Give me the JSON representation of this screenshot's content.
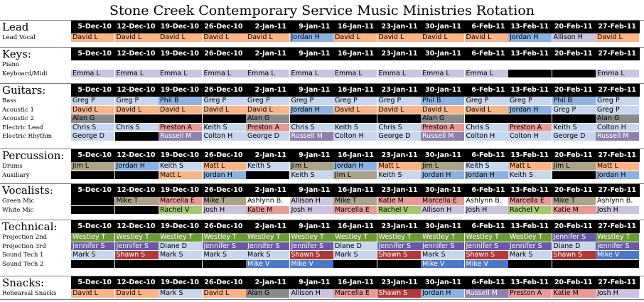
{
  "title": "Stone Creek Contemporary Service Music Ministries Rotation",
  "dates": [
    "5-Dec-10",
    "12-Dec-10",
    "19-Dec-10",
    "26-Dec-10",
    "2-Jan-11",
    "9-Jan-11",
    "16-Jan-11",
    "23-Jan-11",
    "30-Jan-11",
    "6-Feb-11",
    "13-Feb-11",
    "20-Feb-11",
    "27-Feb-11"
  ],
  "colors": {
    "peach": "#f9b58a",
    "blue": "#8eb2df",
    "lav": "#ccc4dd",
    "gray": "#8a8a8a",
    "lblue": "#c8d7ee",
    "rose": "#e69a9a",
    "taupe": "#aaa38a",
    "green": "#a4c870",
    "dgreen": "#6f9a3a",
    "purple": "#6a5aa6",
    "dblue": "#4f77c8",
    "dred": "#b03a3a",
    "mauve": "#8e80ad",
    "white": "#ffffff",
    "black": "#000000"
  },
  "sections": [
    {
      "name": "Lead",
      "showDates": true,
      "rows": [
        {
          "label": "Lead Vocal",
          "cells": [
            [
              "David L",
              "peach"
            ],
            [
              "David L",
              "peach"
            ],
            [
              "David L",
              "peach"
            ],
            [
              "David L",
              "peach"
            ],
            [
              "David L",
              "peach"
            ],
            [
              "Jordan H",
              "blue"
            ],
            [
              "David L",
              "peach"
            ],
            [
              "David L",
              "peach"
            ],
            [
              "David L",
              "peach"
            ],
            [
              "David L",
              "peach"
            ],
            [
              "Jordan H",
              "blue"
            ],
            [
              "Allison H",
              "lav"
            ],
            [
              "David L",
              "peach"
            ]
          ]
        }
      ]
    },
    {
      "name": "Keys:",
      "showDates": true,
      "rows": [
        {
          "label": "Piano",
          "cells": [
            [
              "",
              "white"
            ],
            [
              "",
              "white"
            ],
            [
              "",
              "white"
            ],
            [
              "",
              "white"
            ],
            [
              "",
              "white"
            ],
            [
              "",
              "white"
            ],
            [
              "",
              "white"
            ],
            [
              "",
              "white"
            ],
            [
              "",
              "white"
            ],
            [
              "",
              "white"
            ],
            [
              "",
              "white"
            ],
            [
              "",
              "white"
            ],
            [
              "",
              "white"
            ]
          ]
        },
        {
          "label": "Keyboard/Midi",
          "cells": [
            [
              "Emma L",
              "lav"
            ],
            [
              "Emma L",
              "lav"
            ],
            [
              "Emma L",
              "lav"
            ],
            [
              "Emma L",
              "lav"
            ],
            [
              "Emma L",
              "lav"
            ],
            [
              "Emma L",
              "lav"
            ],
            [
              "Emma L",
              "lav"
            ],
            [
              "Emma L",
              "lav"
            ],
            [
              "Emma L",
              "lav"
            ],
            [
              "Emma L",
              "lav"
            ],
            [
              "",
              "black"
            ],
            [
              "",
              "black"
            ],
            [
              "Emma L",
              "lav"
            ]
          ]
        }
      ]
    },
    {
      "name": "Guitars:",
      "showDates": true,
      "rows": [
        {
          "label": "Bass",
          "cells": [
            [
              "Greg P",
              "lblue"
            ],
            [
              "Greg P",
              "lblue"
            ],
            [
              "Phil B",
              "blue"
            ],
            [
              "Greg P",
              "lblue"
            ],
            [
              "Greg P",
              "lblue"
            ],
            [
              "Greg P",
              "lblue"
            ],
            [
              "Greg P",
              "lblue"
            ],
            [
              "Greg P",
              "lblue"
            ],
            [
              "Phil B",
              "blue"
            ],
            [
              "Greg P",
              "lblue"
            ],
            [
              "Greg P",
              "lblue"
            ],
            [
              "Phil B",
              "blue"
            ],
            [
              "Greg P",
              "lblue"
            ]
          ]
        },
        {
          "label": "Acoustic 1",
          "cells": [
            [
              "David L",
              "peach"
            ],
            [
              "David L",
              "peach"
            ],
            [
              "David L",
              "peach"
            ],
            [
              "David L",
              "peach"
            ],
            [
              "David L",
              "peach"
            ],
            [
              "Jordan H",
              "blue"
            ],
            [
              "David L",
              "peach"
            ],
            [
              "David L",
              "peach"
            ],
            [
              "David L",
              "peach"
            ],
            [
              "David L",
              "peach"
            ],
            [
              "Jordan H",
              "blue"
            ],
            [
              "Greg P",
              "lblue"
            ],
            [
              "Greg P",
              "lblue"
            ]
          ]
        },
        {
          "label": "Acoustic 2",
          "cells": [
            [
              "Alan G",
              "gray"
            ],
            [
              "",
              "black"
            ],
            [
              "",
              "black"
            ],
            [
              "",
              "black"
            ],
            [
              "Alan G",
              "gray"
            ],
            [
              "",
              "black"
            ],
            [
              "",
              "black"
            ],
            [
              "",
              "black"
            ],
            [
              "Alan G",
              "gray"
            ],
            [
              "",
              "black"
            ],
            [
              "",
              "black"
            ],
            [
              "",
              "black"
            ],
            [
              "Alan G",
              "gray"
            ]
          ]
        },
        {
          "label": "Electric Lead",
          "cells": [
            [
              "Chris S",
              "lblue"
            ],
            [
              "Chris S",
              "lblue"
            ],
            [
              "Preston A",
              "rose"
            ],
            [
              "Keith S",
              "lblue"
            ],
            [
              "Preston A",
              "rose"
            ],
            [
              "Chris S",
              "lblue"
            ],
            [
              "Keith S",
              "lblue"
            ],
            [
              "Chris S",
              "lblue"
            ],
            [
              "Preston A",
              "rose"
            ],
            [
              "Chris S",
              "lblue"
            ],
            [
              "Preston A",
              "rose"
            ],
            [
              "Keith S",
              "lblue"
            ],
            [
              "Colton H",
              "lblue"
            ]
          ]
        },
        {
          "label": "Electric Rhythm",
          "cells": [
            [
              "George D",
              "lblue"
            ],
            [
              "",
              "black"
            ],
            [
              "Russell M",
              "mauve"
            ],
            [
              "Colton H",
              "lblue"
            ],
            [
              "George D",
              "lblue"
            ],
            [
              "Russell M",
              "mauve"
            ],
            [
              "Colton H",
              "lblue"
            ],
            [
              "George D",
              "lblue"
            ],
            [
              "Russell M",
              "mauve"
            ],
            [
              "Colton H",
              "lblue"
            ],
            [
              "Colton H",
              "lblue"
            ],
            [
              "George D",
              "lblue"
            ],
            [
              "Russell M",
              "mauve"
            ]
          ]
        }
      ]
    },
    {
      "name": "Percussion:",
      "showDates": true,
      "rows": [
        {
          "label": "Drums",
          "cells": [
            [
              "Jim L",
              "taupe"
            ],
            [
              "Jordan H",
              "blue"
            ],
            [
              "Keith S",
              "lblue"
            ],
            [
              "Matt L",
              "peach"
            ],
            [
              "Keith S",
              "lblue"
            ],
            [
              "Jim L",
              "taupe"
            ],
            [
              "Jordan H",
              "blue"
            ],
            [
              "Matt L",
              "peach"
            ],
            [
              "Jim L",
              "taupe"
            ],
            [
              "Keith S",
              "lblue"
            ],
            [
              "Matt L",
              "peach"
            ],
            [
              "Jim L",
              "taupe"
            ],
            [
              "Matt L",
              "peach"
            ]
          ]
        },
        {
          "label": "Auxiliary",
          "cells": [
            [
              "",
              "black"
            ],
            [
              "",
              "black"
            ],
            [
              "Matt L",
              "peach"
            ],
            [
              "Jordan H",
              "blue"
            ],
            [
              "",
              "black"
            ],
            [
              "Keith S",
              "lblue"
            ],
            [
              "Jim L",
              "taupe"
            ],
            [
              "Keith S",
              "lblue"
            ],
            [
              "Jordan H",
              "blue"
            ],
            [
              "Jordan H",
              "blue"
            ],
            [
              "Keith S",
              "lblue"
            ],
            [
              "",
              "black"
            ],
            [
              "Jordan H",
              "blue"
            ]
          ]
        }
      ]
    },
    {
      "name": "Vocalists:",
      "showDates": true,
      "rows": [
        {
          "label": "Green Mic",
          "cells": [
            [
              "",
              "black"
            ],
            [
              "Mike T",
              "taupe"
            ],
            [
              "Marcella E",
              "rose"
            ],
            [
              "Mike T",
              "taupe"
            ],
            [
              "Ashlynn B.",
              "white"
            ],
            [
              "Allison H",
              "lav"
            ],
            [
              "Mike T",
              "taupe"
            ],
            [
              "Katie M",
              "rose"
            ],
            [
              "Marcella E",
              "rose"
            ],
            [
              "Ashlynn B.",
              "white"
            ],
            [
              "Marcella E",
              "rose"
            ],
            [
              "Mike T",
              "taupe"
            ],
            [
              "Ashlynn B.",
              "white"
            ]
          ]
        },
        {
          "label": "White Mic",
          "cells": [
            [
              "",
              "black"
            ],
            [
              "",
              "black"
            ],
            [
              "Rachel V",
              "green"
            ],
            [
              "Josh H",
              "lav"
            ],
            [
              "Katie M",
              "rose"
            ],
            [
              "Josh H",
              "lav"
            ],
            [
              "Marcella E",
              "rose"
            ],
            [
              "Rachel V",
              "green"
            ],
            [
              "Allison H",
              "lav"
            ],
            [
              "Josh H",
              "lav"
            ],
            [
              "Rachel V",
              "green"
            ],
            [
              "Katie M",
              "rose"
            ],
            [
              "Josh H",
              "lav"
            ]
          ]
        }
      ]
    },
    {
      "name": "Technical:",
      "showDates": true,
      "rows": [
        {
          "label": "Projection 2nd",
          "cells": [
            [
              "Westley T",
              "dgreen"
            ],
            [
              "Westley T",
              "dgreen"
            ],
            [
              "Westley T",
              "dgreen"
            ],
            [
              "Westley T",
              "dgreen"
            ],
            [
              "Westley T",
              "dgreen"
            ],
            [
              "Westley T",
              "dgreen"
            ],
            [
              "Westley T",
              "dgreen"
            ],
            [
              "Westley T",
              "dgreen"
            ],
            [
              "Westley T",
              "dgreen"
            ],
            [
              "Westley T",
              "dgreen"
            ],
            [
              "Westley T",
              "dgreen"
            ],
            [
              "Jennifer S",
              "purple"
            ],
            [
              "Westley T",
              "dgreen"
            ]
          ]
        },
        {
          "label": "Projection 3rd",
          "cells": [
            [
              "Jennifer S",
              "purple"
            ],
            [
              "Jennifer S",
              "purple"
            ],
            [
              "Diane D",
              "lblue"
            ],
            [
              "Jennifer S",
              "purple"
            ],
            [
              "Jennifer S",
              "purple"
            ],
            [
              "Jennifer S",
              "purple"
            ],
            [
              "Diane D",
              "lblue"
            ],
            [
              "Jennifer S",
              "purple"
            ],
            [
              "Jennifer S",
              "purple"
            ],
            [
              "Jennifer S",
              "purple"
            ],
            [
              "Jennifer S",
              "purple"
            ],
            [
              "Diane D",
              "lblue"
            ],
            [
              "Jennifer S",
              "purple"
            ]
          ]
        },
        {
          "label": "Sound Tech 1",
          "cells": [
            [
              "Mark S",
              "lblue"
            ],
            [
              "Shawn S",
              "dred"
            ],
            [
              "Mark S",
              "lblue"
            ],
            [
              "Mark S",
              "lblue"
            ],
            [
              "Mark S",
              "lblue"
            ],
            [
              "Shawn S",
              "dred"
            ],
            [
              "Mark S",
              "lblue"
            ],
            [
              "Shawn S",
              "dred"
            ],
            [
              "Mark S",
              "lblue"
            ],
            [
              "Shawn S",
              "dred"
            ],
            [
              "Mark S",
              "lblue"
            ],
            [
              "Shawn S",
              "dred"
            ],
            [
              "Mike V",
              "dblue"
            ]
          ]
        },
        {
          "label": "Sound Tech 2",
          "cells": [
            [
              "",
              "black"
            ],
            [
              "",
              "black"
            ],
            [
              "",
              "black"
            ],
            [
              "",
              "black"
            ],
            [
              "Mike V",
              "dblue"
            ],
            [
              "Mike V",
              "dblue"
            ],
            [
              "",
              "black"
            ],
            [
              "",
              "black"
            ],
            [
              "Mike V",
              "dblue"
            ],
            [
              "Mike V",
              "dblue"
            ],
            [
              "",
              "black"
            ],
            [
              "",
              "black"
            ],
            [
              "",
              "black"
            ]
          ]
        }
      ]
    },
    {
      "name": "Snacks:",
      "showDates": true,
      "rows": [
        {
          "label": "Rehearsal Snacks",
          "cells": [
            [
              "David L",
              "peach"
            ],
            [
              "David L",
              "peach"
            ],
            [
              "Mark S",
              "lblue"
            ],
            [
              "David L",
              "peach"
            ],
            [
              "Alan G",
              "gray"
            ],
            [
              "Allison H",
              "lav"
            ],
            [
              "Marcella E",
              "rose"
            ],
            [
              "Shawn S",
              "dred"
            ],
            [
              "Jordan H",
              "blue"
            ],
            [
              "Russell M",
              "mauve"
            ],
            [
              "Preston A",
              "rose"
            ],
            [
              "Katie M",
              "rose"
            ],
            [
              "Josh H",
              "lav"
            ]
          ]
        }
      ]
    }
  ]
}
